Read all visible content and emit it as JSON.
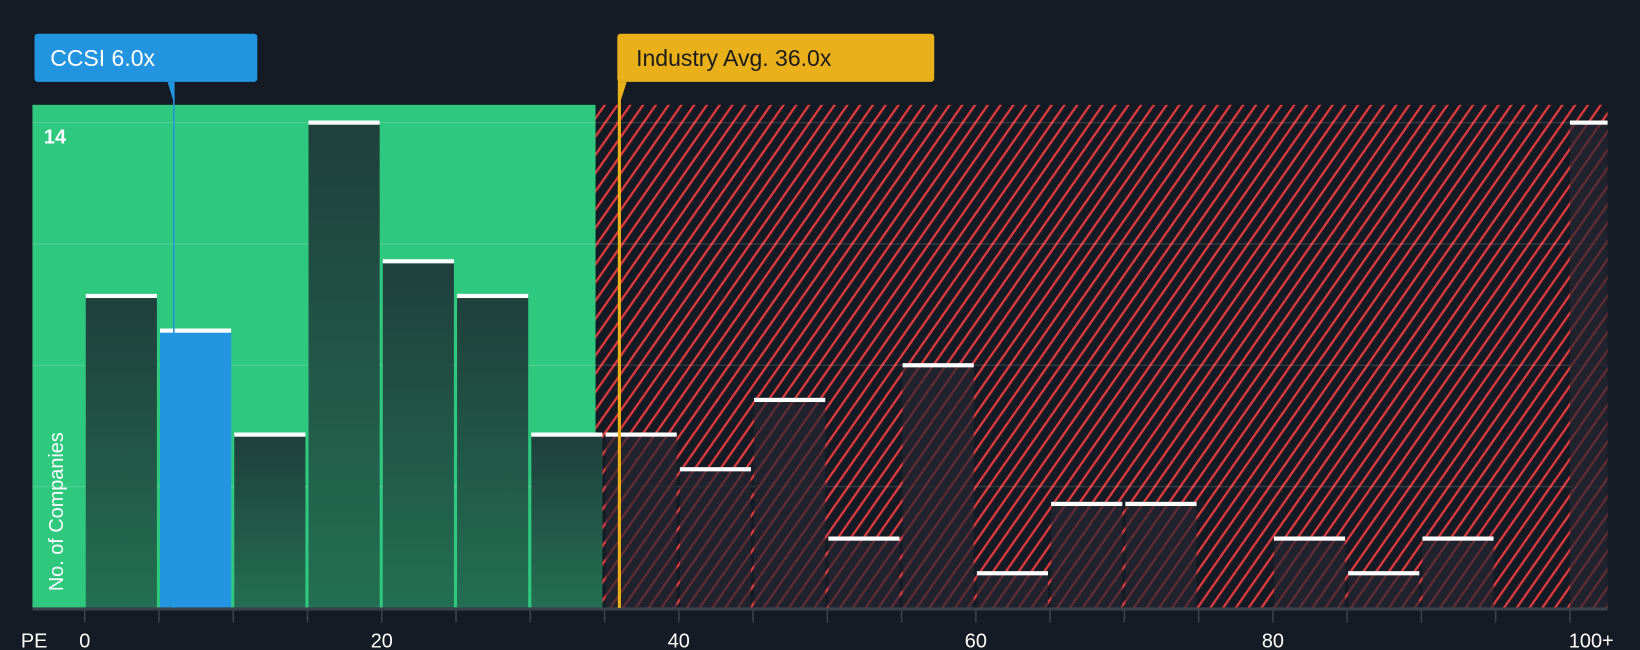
{
  "chart_data": {
    "type": "bar",
    "title": "",
    "xlabel": "PE",
    "ylabel": "No. of Companies",
    "bin_width": 5,
    "categories": [
      "0-5",
      "5-10",
      "10-15",
      "15-20",
      "20-25",
      "25-30",
      "30-35",
      "35-40",
      "40-45",
      "45-50",
      "50-55",
      "55-60",
      "60-65",
      "65-70",
      "70-75",
      "75-80",
      "80-85",
      "85-90",
      "90-95",
      "95-100",
      "100+"
    ],
    "values": [
      9,
      8,
      5,
      14,
      10,
      9,
      5,
      5,
      4,
      6,
      2,
      7,
      1,
      3,
      3,
      0,
      2,
      1,
      2,
      0,
      14
    ],
    "highlight_index": 1,
    "x_ticks": [
      "0",
      "20",
      "40",
      "60",
      "80",
      "100+"
    ],
    "y_tick_labels": [
      "14"
    ],
    "ylim": [
      0,
      14.5
    ],
    "grid": true,
    "markers": {
      "company": {
        "label": "CCSI 6.0x",
        "value": 6.0,
        "color": "#2394e0"
      },
      "industry": {
        "label": "Industry Avg. 36.0x",
        "value": 36.0,
        "color": "#e9b01a"
      }
    },
    "fair_zone_end": 34.4,
    "colors": {
      "fair": "#2ec87f",
      "over": "#e03a3e",
      "bar": "#1f4a3e",
      "bar_over": "#222330",
      "bg": "#151b24"
    }
  }
}
